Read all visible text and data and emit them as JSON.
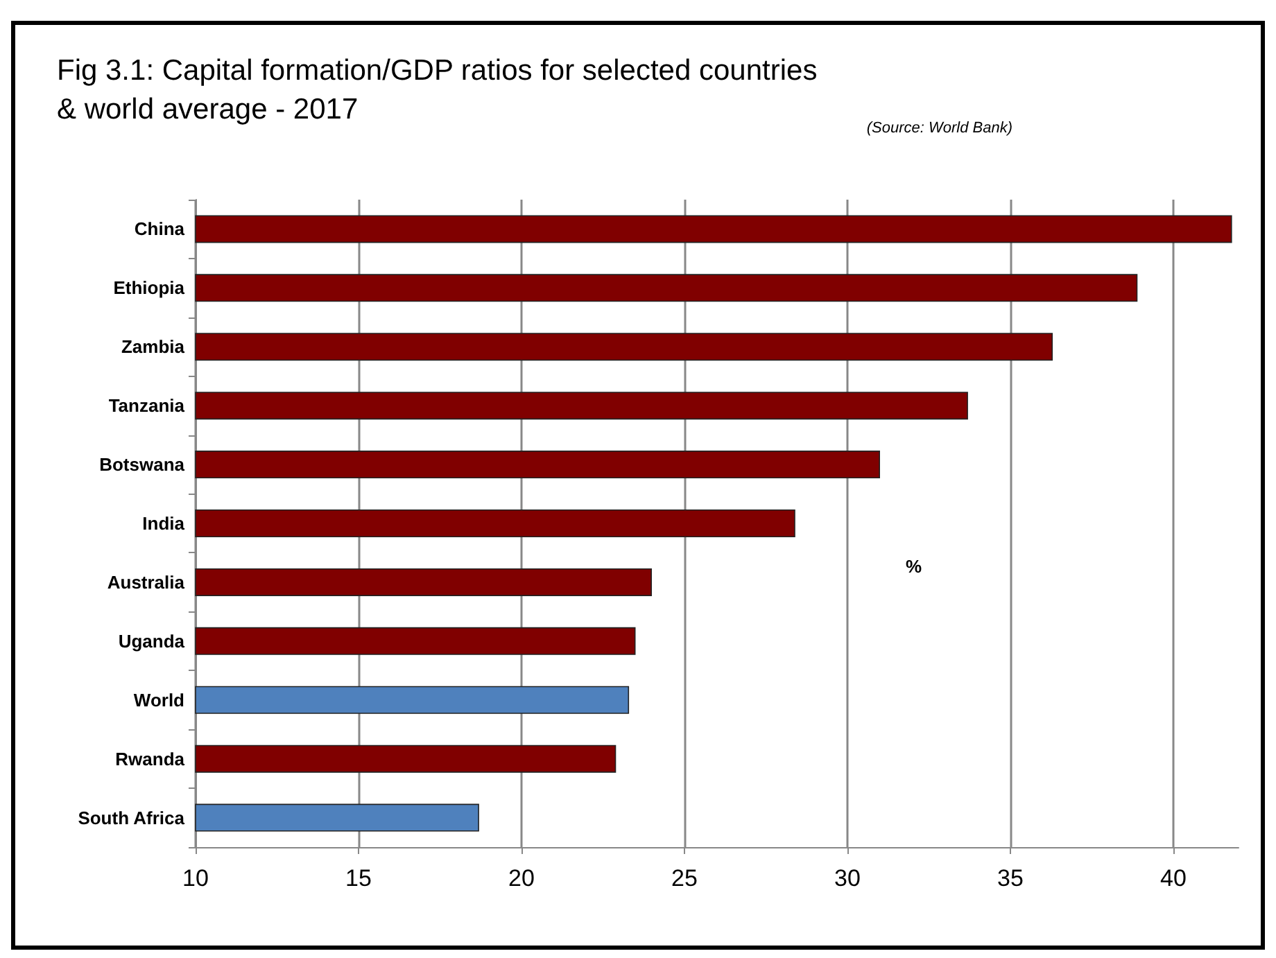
{
  "chart_data": {
    "type": "bar",
    "orientation": "horizontal",
    "title": "Fig 3.1: Capital formation/GDP ratios for selected countries\n& world average - 2017",
    "categories": [
      "China",
      "Ethiopia",
      "Zambia",
      "Tanzania",
      "Botswana",
      "India",
      "Australia",
      "Uganda",
      "World",
      "Rwanda",
      "South Africa"
    ],
    "values": [
      41.8,
      38.9,
      36.3,
      33.7,
      31.0,
      28.4,
      24.0,
      23.5,
      23.3,
      22.9,
      18.7
    ],
    "colors": [
      "#800000",
      "#800000",
      "#800000",
      "#800000",
      "#800000",
      "#800000",
      "#800000",
      "#800000",
      "#4f81bd",
      "#800000",
      "#4f81bd"
    ],
    "xlim": [
      10,
      42
    ],
    "xticks": [
      10,
      15,
      20,
      25,
      30,
      35,
      40
    ],
    "grid": "x",
    "annotations": [
      "(Source: World Bank)",
      "%"
    ]
  }
}
